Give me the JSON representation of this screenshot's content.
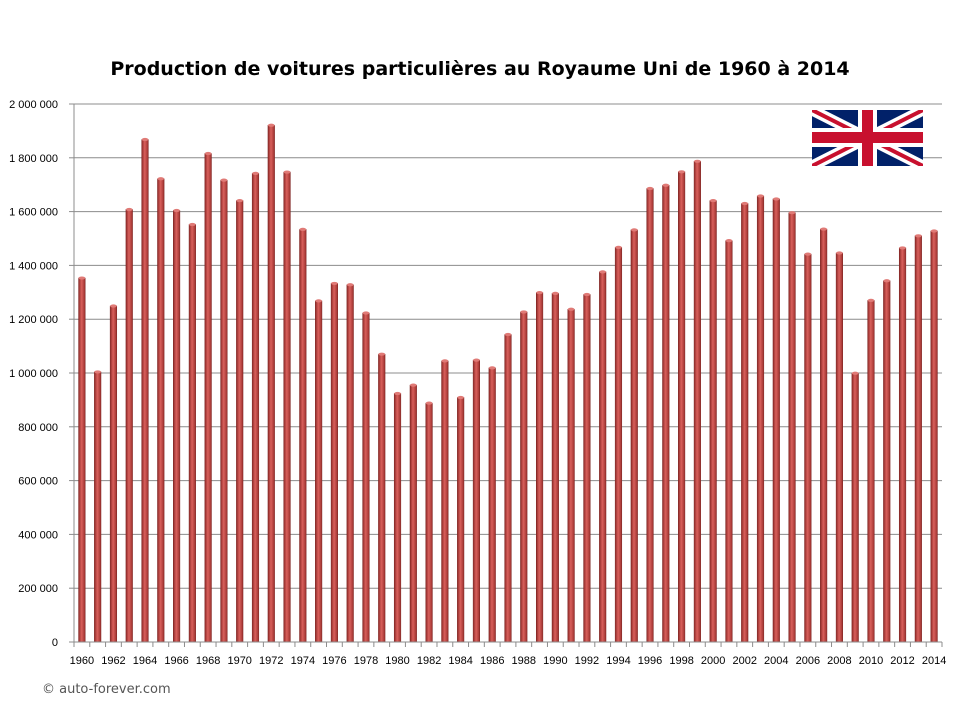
{
  "chart_data": {
    "type": "bar",
    "title": "Production de voitures particulières au Royaume Uni de 1960 à 2014",
    "xlabel": "",
    "ylabel": "",
    "ylim": [
      0,
      2000000
    ],
    "grid": true,
    "y_ticks": [
      0,
      200000,
      400000,
      600000,
      800000,
      1000000,
      1200000,
      1400000,
      1600000,
      1800000,
      2000000
    ],
    "y_tick_labels": [
      "0",
      "200 000",
      "400 000",
      "600 000",
      "800 000",
      "1 000 000",
      "1 200 000",
      "1 400 000",
      "1 600 000",
      "1 800 000",
      "2 000 000"
    ],
    "x_tick_labels": [
      "1960",
      "1962",
      "1964",
      "1966",
      "1968",
      "1970",
      "1972",
      "1974",
      "1976",
      "1978",
      "1980",
      "1982",
      "1984",
      "1986",
      "1988",
      "1990",
      "1992",
      "1994",
      "1996",
      "1998",
      "2000",
      "2002",
      "2004",
      "2006",
      "2008",
      "2010",
      "2012",
      "2014"
    ],
    "categories": [
      1960,
      1961,
      1962,
      1963,
      1964,
      1965,
      1966,
      1967,
      1968,
      1969,
      1970,
      1971,
      1972,
      1973,
      1974,
      1975,
      1976,
      1977,
      1978,
      1979,
      1980,
      1981,
      1982,
      1983,
      1984,
      1985,
      1986,
      1987,
      1988,
      1989,
      1990,
      1991,
      1992,
      1993,
      1994,
      1995,
      1996,
      1997,
      1998,
      1999,
      2000,
      2001,
      2002,
      2003,
      2004,
      2005,
      2006,
      2007,
      2008,
      2009,
      2010,
      2011,
      2012,
      2013,
      2014
    ],
    "values": [
      1353000,
      1004000,
      1249000,
      1608000,
      1868000,
      1722000,
      1604000,
      1552000,
      1816000,
      1717000,
      1641000,
      1742000,
      1921000,
      1747000,
      1534000,
      1268000,
      1333000,
      1328000,
      1223000,
      1070000,
      924000,
      955000,
      888000,
      1045000,
      909000,
      1048000,
      1019000,
      1143000,
      1227000,
      1299000,
      1296000,
      1237000,
      1292000,
      1376000,
      1467000,
      1532000,
      1686000,
      1698000,
      1748000,
      1787000,
      1641000,
      1492000,
      1630000,
      1658000,
      1647000,
      1596000,
      1442000,
      1535000,
      1446000,
      999000,
      1270000,
      1343000,
      1465000,
      1510000,
      1528000
    ],
    "bar_color": "#c0504d",
    "flag": "uk-flag"
  },
  "footer": {
    "copyright": "© auto-forever.com"
  }
}
